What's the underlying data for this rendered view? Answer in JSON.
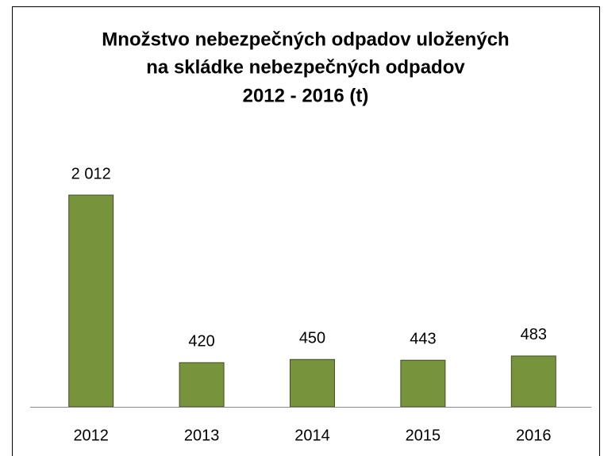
{
  "chart_data": {
    "type": "bar",
    "title": [
      "Množstvo nebezpečných odpadov uložených",
      "na skládke nebezpečných odpadov",
      "2012 - 2016 (t)"
    ],
    "categories": [
      "2012",
      "2013",
      "2014",
      "2015",
      "2016"
    ],
    "values": [
      2012,
      420,
      450,
      443,
      483
    ],
    "value_labels": [
      "2 012",
      "420",
      "450",
      "443",
      "483"
    ],
    "color": "#77933c"
  }
}
